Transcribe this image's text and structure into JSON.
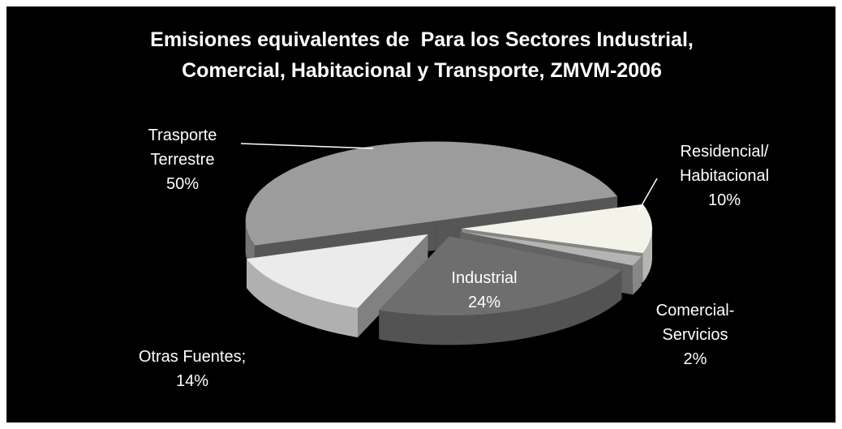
{
  "chart_data": {
    "type": "pie",
    "title": "Emisiones equivalentes de  Para los Sectores Industrial, Comercial, Habitacional y Transporte, ZMVM-2006",
    "categories": [
      "Trasporte Terrestre",
      "Residencial/ Habitacional",
      "Comercial- Servicios",
      "Industrial",
      "Otras Fuentes;"
    ],
    "values": [
      50,
      10,
      2,
      24,
      14
    ],
    "value_labels": [
      "50%",
      "10%",
      "2%",
      "24%",
      "14%"
    ],
    "colors": [
      "#9c9c9c",
      "#f3f3ea",
      "#b4b4b4",
      "#6e6e6e",
      "#ebebeb"
    ]
  }
}
